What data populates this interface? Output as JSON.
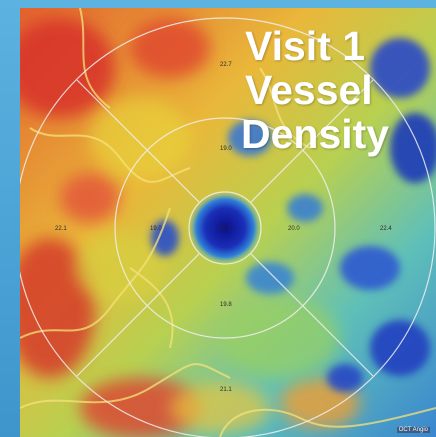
{
  "title": {
    "line1": "Visit 1",
    "line2": "Vessel",
    "line3": "Density"
  },
  "sector_values": {
    "top_outer": "22.7",
    "top_inner": "19.0",
    "left_outer": "22.1",
    "left_inner": "19.0",
    "center": "18.1",
    "right_inner": "20.0",
    "right_outer": "22.4",
    "bottom_inner": "19.8",
    "bottom_outer": "21.1"
  },
  "watermark": "OCT Angio",
  "colors": {
    "background": "#4aa3d6",
    "heatmap_high": "#d8332a",
    "heatmap_mid": "#e8d23a",
    "heatmap_low": "#1a2fb8",
    "grid_lines": "#f0f0f0"
  }
}
